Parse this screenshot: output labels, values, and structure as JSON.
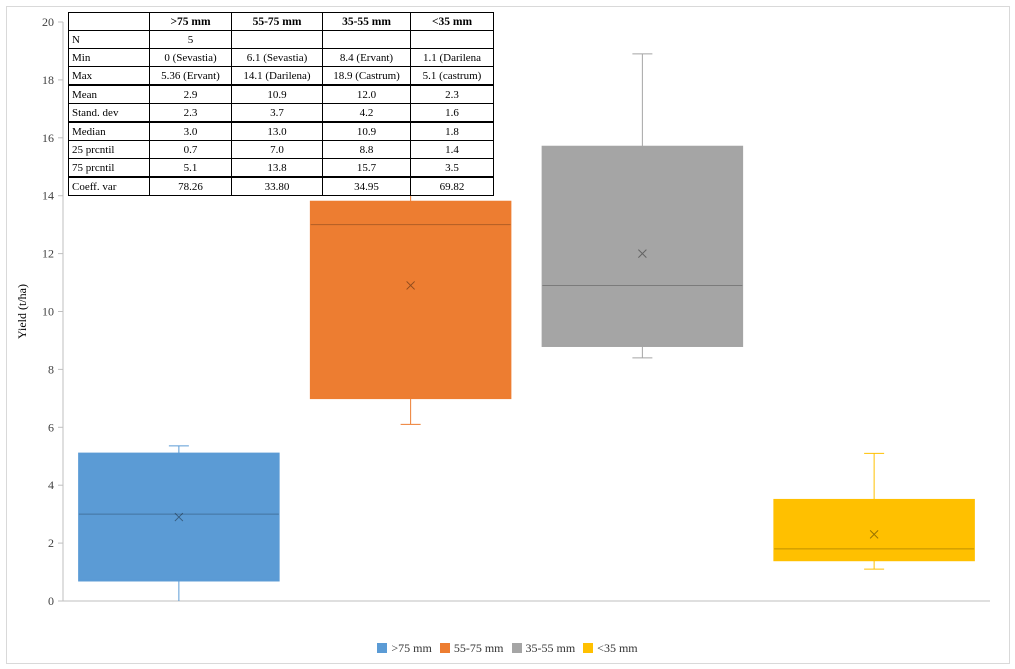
{
  "chart_data": {
    "type": "box",
    "ylabel": "Yield (t/ha)",
    "ylim": [
      0,
      20
    ],
    "yticks": [
      "0",
      "2",
      "4",
      "6",
      "8",
      "10",
      "12",
      "14",
      "16",
      "18",
      "20"
    ],
    "grid": false,
    "legend_position": "bottom",
    "series": [
      {
        "name": ">75 mm",
        "color": "#5b9bd5",
        "min": 0,
        "q1": 0.7,
        "median": 3.0,
        "q3": 5.1,
        "max": 5.36,
        "mean": 2.9
      },
      {
        "name": "55-75 mm",
        "color": "#ed7d31",
        "min": 6.1,
        "q1": 7.0,
        "median": 13.0,
        "q3": 13.8,
        "max": 14.1,
        "mean": 10.9
      },
      {
        "name": "35-55 mm",
        "color": "#a5a5a5",
        "min": 8.4,
        "q1": 8.8,
        "median": 10.9,
        "q3": 15.7,
        "max": 18.9,
        "mean": 12.0
      },
      {
        "name": "<35 mm",
        "color": "#ffc000",
        "min": 1.1,
        "q1": 1.4,
        "median": 1.8,
        "q3": 3.5,
        "max": 5.1,
        "mean": 2.3
      }
    ]
  },
  "stats_table": {
    "headers": [
      "",
      ">75 mm",
      "55-75 mm",
      "35-55 mm",
      "<35 mm"
    ],
    "rows": [
      [
        "N",
        "5",
        "",
        "",
        ""
      ],
      [
        "Min",
        "0 (Sevastia)",
        "6.1 (Sevastia)",
        "8.4 (Ervant)",
        "1.1 (Darilena"
      ],
      [
        "Max",
        "5.36 (Ervant)",
        "14.1 (Darilena)",
        "18.9 (Castrum)",
        "5.1 (castrum)"
      ],
      [
        "Mean",
        "2.9",
        "10.9",
        "12.0",
        "2.3"
      ],
      [
        "Stand. dev",
        "2.3",
        "3.7",
        "4.2",
        "1.6"
      ],
      [
        "Median",
        "3.0",
        "13.0",
        "10.9",
        "1.8"
      ],
      [
        "25 prcntil",
        "0.7",
        "7.0",
        "8.8",
        "1.4"
      ],
      [
        "75 prcntil",
        "5.1",
        "13.8",
        "15.7",
        "3.5"
      ],
      [
        "Coeff. var",
        "78.26",
        "33.80",
        "34.95",
        "69.82"
      ]
    ]
  }
}
